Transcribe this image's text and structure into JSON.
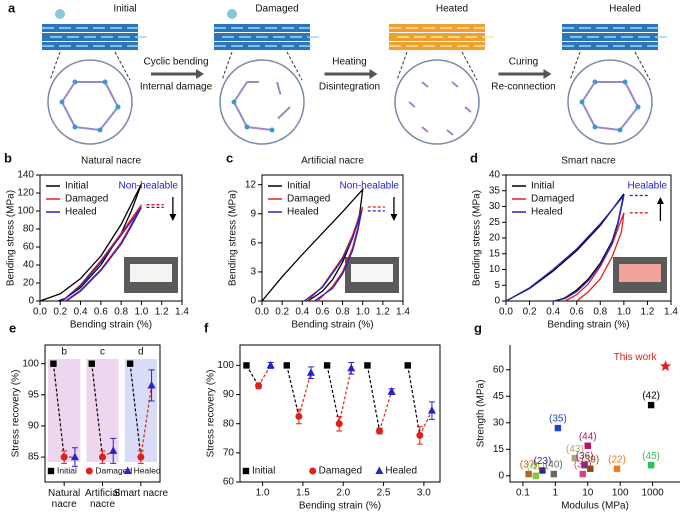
{
  "diagram": {
    "panel": "a",
    "stages": [
      "Initial",
      "Damaged",
      "Heated",
      "Healed"
    ],
    "steps": [
      [
        "Cyclic bending",
        "Internal damage"
      ],
      [
        "Heating",
        "Disintegration"
      ],
      [
        "Curing",
        "Re-connection"
      ]
    ]
  },
  "chart_data": [
    {
      "panel": "b",
      "type": "line",
      "title": "Natural nacre",
      "xlabel": "Bending strain (%)",
      "ylabel": "Bending stress (MPa)",
      "annotation": "Non-healable",
      "arrow": "down",
      "inset_color": "#f4f4f0",
      "legend": "upper left",
      "xlim": [
        0,
        1.4
      ],
      "xticks": [
        {
          "value": 0,
          "label": "0.0"
        },
        0.2,
        0.4,
        0.6,
        0.8,
        {
          "value": 1,
          "label": "1.0"
        },
        1.2,
        1.4
      ],
      "ylim": [
        0,
        140
      ],
      "yticks": [
        0,
        20,
        40,
        60,
        80,
        100,
        120,
        140
      ],
      "series": [
        {
          "name": "Initial",
          "color": "#000000",
          "x": [
            0,
            0.2,
            0.4,
            0.6,
            0.8,
            1.0,
            0.9,
            0.8,
            0.6,
            0.4,
            0.25,
            0.18
          ],
          "values": [
            0,
            8,
            25,
            50,
            85,
            130,
            100,
            75,
            40,
            15,
            3,
            0
          ]
        },
        {
          "name": "Damaged",
          "color": "#e0201c",
          "x": [
            0.22,
            0.4,
            0.6,
            0.8,
            1.0,
            0.9,
            0.8,
            0.6,
            0.4,
            0.25
          ],
          "values": [
            0,
            18,
            45,
            75,
            107,
            85,
            65,
            35,
            12,
            0
          ]
        },
        {
          "name": "Healed",
          "color": "#2424c8",
          "x": [
            0.22,
            0.4,
            0.6,
            0.8,
            1.0,
            0.9,
            0.8,
            0.6,
            0.4,
            0.26
          ],
          "values": [
            0,
            17,
            43,
            73,
            104,
            83,
            63,
            34,
            11,
            0
          ]
        }
      ]
    },
    {
      "panel": "c",
      "type": "line",
      "title": "Artificial nacre",
      "xlabel": "Bending strain (%)",
      "ylabel": "Bending stress (MPa)",
      "annotation": "Non-healable",
      "arrow": "down",
      "inset_color": "#f6f6f6",
      "legend": "upper left",
      "xlim": [
        0,
        1.4
      ],
      "xticks": [
        {
          "value": 0,
          "label": "0.0"
        },
        0.2,
        0.4,
        0.6,
        0.8,
        {
          "value": 1,
          "label": "1.0"
        },
        1.2,
        1.4
      ],
      "ylim": [
        0,
        13
      ],
      "yticks": [
        0,
        3,
        6,
        9,
        12
      ],
      "series": [
        {
          "name": "Initial",
          "color": "#000000",
          "x": [
            0,
            0.2,
            0.4,
            0.6,
            0.8,
            1.0,
            0.97,
            0.9,
            0.8,
            0.7,
            0.6,
            0.5,
            0.45
          ],
          "values": [
            0,
            2.5,
            4.8,
            7,
            9.2,
            11.5,
            9,
            6.5,
            4,
            2.2,
            1,
            0.3,
            0
          ]
        },
        {
          "name": "Damaged",
          "color": "#e0201c",
          "x": [
            0.45,
            0.6,
            0.8,
            0.9,
            1.0,
            0.95,
            0.9,
            0.8,
            0.7,
            0.55
          ],
          "values": [
            0,
            1.5,
            4.5,
            6.8,
            9.7,
            7.5,
            5.5,
            3,
            1.5,
            0
          ]
        },
        {
          "name": "Healed",
          "color": "#2424c8",
          "x": [
            0.42,
            0.6,
            0.8,
            0.9,
            0.99,
            0.95,
            0.9,
            0.8,
            0.7,
            0.52
          ],
          "values": [
            0,
            1.4,
            4.3,
            6.5,
            9.3,
            7.2,
            5.2,
            2.8,
            1.3,
            0
          ]
        }
      ]
    },
    {
      "panel": "d",
      "type": "line",
      "title": "Smart nacre",
      "xlabel": "Bending strain (%)",
      "ylabel": "Bending stress (MPa)",
      "annotation": "Healable",
      "arrow": "up",
      "inset_color": "#f2a39a",
      "legend": "upper left",
      "xlim": [
        0,
        1.4
      ],
      "xticks": [
        {
          "value": 0,
          "label": "0.0"
        },
        0.2,
        0.4,
        0.6,
        0.8,
        {
          "value": 1,
          "label": "1.0"
        },
        1.2,
        1.4
      ],
      "ylim": [
        0,
        40
      ],
      "yticks": [
        0,
        5,
        10,
        15,
        20,
        25,
        30,
        35,
        40
      ],
      "series": [
        {
          "name": "Initial",
          "color": "#000000",
          "x": [
            0,
            0.2,
            0.4,
            0.6,
            0.8,
            1.0,
            0.95,
            0.9,
            0.8,
            0.7,
            0.6,
            0.5,
            0.42
          ],
          "values": [
            0,
            4,
            9.5,
            16,
            24,
            34,
            25,
            19,
            12,
            7,
            3.5,
            1,
            0
          ]
        },
        {
          "name": "Damaged",
          "color": "#e0201c",
          "x": [
            0.5,
            0.6,
            0.7,
            0.8,
            0.9,
            1.0,
            0.98,
            0.9,
            0.8,
            0.7,
            0.6
          ],
          "values": [
            0,
            2,
            5.5,
            11,
            18,
            28,
            22,
            14,
            7,
            3,
            0
          ]
        },
        {
          "name": "Healed",
          "color": "#2424c8",
          "x": [
            0,
            0.2,
            0.4,
            0.6,
            0.8,
            1.0,
            0.95,
            0.9,
            0.8,
            0.7,
            0.6,
            0.5,
            0.4
          ],
          "values": [
            0,
            4.2,
            10,
            16.5,
            24.5,
            33.5,
            24.5,
            18.5,
            11.5,
            6.5,
            3,
            0.8,
            0
          ]
        }
      ]
    },
    {
      "panel": "e",
      "type": "scatter",
      "ylabel": "Stress recovery (%)",
      "legend": "lower center",
      "categories": [
        "Natural nacre",
        "Artificial nacre",
        "Smart nacre"
      ],
      "notes": [
        "b",
        "c",
        "d"
      ],
      "band_colors": [
        "#efd6ef",
        "#efd6ef",
        "#d9dcf6"
      ],
      "ylim": [
        81,
        103
      ],
      "yticks": [
        85,
        90,
        95,
        100
      ],
      "series": [
        {
          "name": "Initial",
          "color": "#000000",
          "marker": "square",
          "values": [
            100,
            100,
            100
          ]
        },
        {
          "name": "Damaged",
          "color": "#e0201c",
          "marker": "circle",
          "values": [
            85,
            85,
            85
          ],
          "errors": [
            1,
            1,
            1
          ]
        },
        {
          "name": "Healed",
          "color": "#2424c8",
          "marker": "triangle",
          "values": [
            85,
            86,
            96.5
          ],
          "errors": [
            1.5,
            2,
            2.5
          ]
        }
      ]
    },
    {
      "panel": "f",
      "type": "scatter",
      "xlabel": "Bending strain (%)",
      "ylabel": "Stress recovery (%)",
      "legend": "lower center",
      "xlim": [
        0.72,
        3.2
      ],
      "xticks": [
        {
          "value": 1,
          "label": "1.0"
        },
        1.5,
        {
          "value": 2,
          "label": "2.0"
        },
        2.5,
        {
          "value": 3,
          "label": "3.0"
        }
      ],
      "ylim": [
        60,
        107
      ],
      "yticks": [
        60,
        70,
        80,
        90,
        100
      ],
      "series": [
        {
          "name": "Initial",
          "color": "#000000",
          "marker": "square",
          "x": [
            0.8,
            1.3,
            1.8,
            2.3,
            2.8
          ],
          "values": [
            100,
            100,
            100,
            100,
            100
          ]
        },
        {
          "name": "Damaged",
          "color": "#e0201c",
          "marker": "circle",
          "x": [
            0.95,
            1.45,
            1.95,
            2.45,
            2.95
          ],
          "values": [
            93,
            82.5,
            80,
            77.5,
            76
          ],
          "errors": [
            1,
            2.5,
            2.5,
            1,
            3
          ]
        },
        {
          "name": "Healed",
          "color": "#2424c8",
          "marker": "triangle",
          "x": [
            1.1,
            1.6,
            2.1,
            2.6,
            3.1
          ],
          "values": [
            100,
            97.5,
            99,
            91,
            84.5
          ],
          "errors": [
            1,
            2,
            2,
            1,
            3
          ]
        }
      ]
    },
    {
      "panel": "g",
      "type": "scatter",
      "xlabel": "Modulus (MPa)",
      "ylabel": "Strength (MPa)",
      "xscale": "log",
      "frame": false,
      "xlim": [
        0.04,
        7000
      ],
      "xticks": [
        0.1,
        1,
        10,
        100,
        1000
      ],
      "ylim": [
        -3.5,
        74
      ],
      "yticks": [
        0,
        15,
        30,
        45,
        60
      ],
      "points": [
        {
          "label": "(37)",
          "x": 0.15,
          "y": 1,
          "color": "#b5651d",
          "marker": "square"
        },
        {
          "label": "(41)",
          "x": 0.25,
          "y": 0,
          "color": "#8cc63f",
          "marker": "square"
        },
        {
          "label": "(23)",
          "x": 0.4,
          "y": 3,
          "color": "#3a2a80",
          "marker": "square"
        },
        {
          "label": "(40)",
          "x": 0.9,
          "y": 1,
          "color": "#666666",
          "marker": "square"
        },
        {
          "label": "(35)",
          "x": 1.2,
          "y": 27,
          "color": "#2244cc",
          "marker": "square"
        },
        {
          "label": "(43)",
          "x": 4,
          "y": 10,
          "color": "#b8a070",
          "marker": "square"
        },
        {
          "label": "(38)",
          "x": 7,
          "y": 1,
          "color": "#e0407a",
          "marker": "square"
        },
        {
          "label": "(36)",
          "x": 8,
          "y": 6,
          "color": "#8a2a7a",
          "marker": "square"
        },
        {
          "label": "(44)",
          "x": 10,
          "y": 17,
          "color": "#c01060",
          "marker": "square"
        },
        {
          "label": "(39)",
          "x": 12,
          "y": 4,
          "color": "#8a4a10",
          "marker": "square"
        },
        {
          "label": "(22)",
          "x": 80,
          "y": 4,
          "color": "#f07820",
          "marker": "square"
        },
        {
          "label": "(45)",
          "x": 900,
          "y": 6,
          "color": "#30c050",
          "marker": "square"
        },
        {
          "label": "(42)",
          "x": 900,
          "y": 40,
          "color": "#000000",
          "marker": "square"
        },
        {
          "label": "This work",
          "x": 2500,
          "y": 62,
          "color": "#e0201c",
          "marker": "star"
        }
      ]
    }
  ]
}
